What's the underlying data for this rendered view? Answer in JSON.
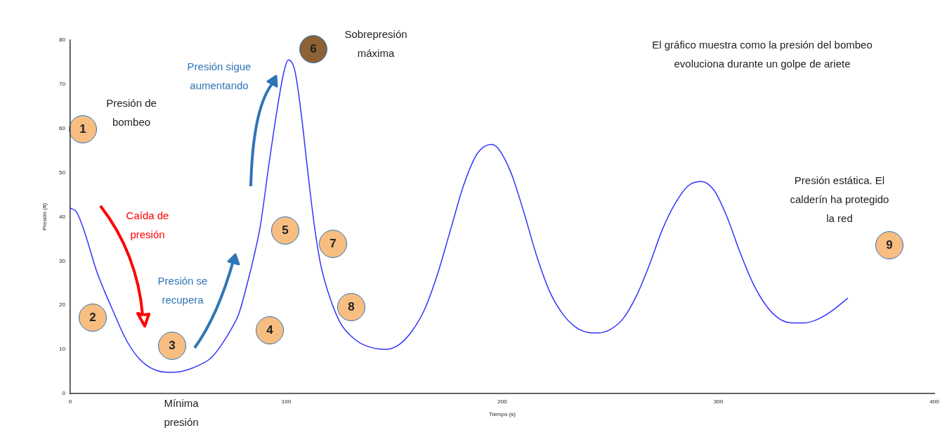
{
  "chart_data": {
    "type": "line",
    "xlabel": "Tiempo (s)",
    "ylabel": "Presión (ft)",
    "x": [
      0,
      3,
      7,
      12,
      16,
      20,
      25,
      30,
      35,
      40,
      45,
      50,
      55,
      60,
      65,
      70,
      75,
      78,
      82,
      85,
      88,
      92,
      96,
      99,
      101,
      104,
      107,
      110,
      113,
      116,
      120,
      125,
      130,
      136,
      146,
      152,
      158,
      164,
      170,
      176,
      182,
      188,
      192,
      195,
      198,
      204,
      210,
      216,
      222,
      228,
      234,
      240,
      244,
      250,
      256,
      262,
      268,
      274,
      280,
      286,
      292,
      298,
      304,
      310,
      316,
      322,
      328,
      334,
      340,
      346,
      352,
      360
    ],
    "series": [
      {
        "color": "#3333ff",
        "values": [
          42,
          41,
          36,
          28,
          23,
          18.5,
          13,
          9,
          6.5,
          5.2,
          4.8,
          4.9,
          5.5,
          6.5,
          8,
          11,
          15,
          18,
          25,
          31,
          38,
          52,
          65,
          73,
          75.5,
          73,
          63,
          50,
          38,
          29,
          22,
          16,
          13,
          11,
          10,
          11,
          14,
          19,
          27,
          37,
          47,
          54,
          56,
          56.4,
          55.5,
          50,
          41,
          31,
          23,
          18,
          15,
          13.8,
          13.7,
          14.5,
          17,
          22,
          29,
          37,
          43,
          47,
          48,
          46,
          40,
          32,
          25,
          20,
          17,
          16,
          16,
          16.8,
          18.5,
          21.6
        ]
      }
    ],
    "xlim": [
      0,
      400
    ],
    "xticks": [
      0,
      100,
      200,
      300,
      400
    ],
    "ylim": [
      0,
      80
    ],
    "yticks": [
      0,
      10,
      20,
      30,
      40,
      50,
      60,
      70,
      80
    ],
    "grid": false,
    "legend": false,
    "marker": "none",
    "line_style": "solid",
    "annotations": [
      "1",
      "2",
      "3",
      "4",
      "5",
      "6",
      "7",
      "8",
      "9",
      "Presión de bombeo",
      "Caída de presión",
      "Presión se recupera",
      "Mínima presión",
      "Presión sigue aumentando",
      "Sobrepresión máxima",
      "El gráfico muestra como la presión del bombeo evoluciona durante un golpe de ariete",
      "Presión estática. El calderín ha protegido la red"
    ]
  }
}
